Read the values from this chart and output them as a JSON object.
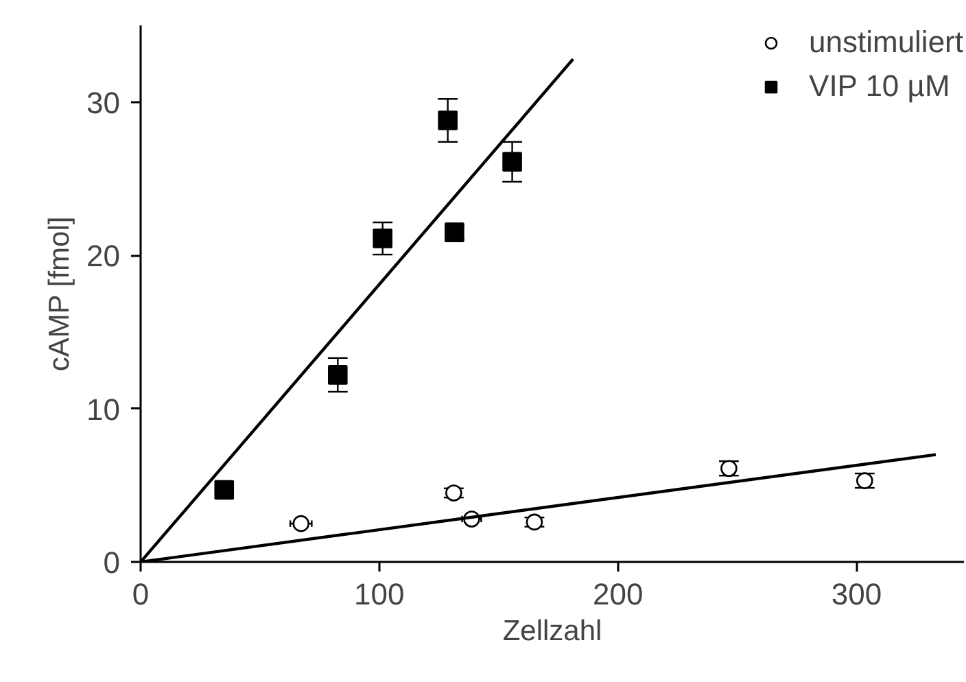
{
  "chart_data": {
    "type": "scatter",
    "xlabel": "Zellzahl",
    "ylabel": "cAMP [fmol]",
    "xlim": [
      0,
      345
    ],
    "ylim": [
      0,
      35
    ],
    "xticks": [
      0,
      100,
      200,
      300
    ],
    "yticks": [
      0,
      10,
      20,
      30
    ],
    "grid": false,
    "legend": "top right",
    "series": [
      {
        "name": "unstimuliert",
        "color": "#000000",
        "marker": "circle",
        "x": [
          67.2,
          131.2,
          138.7,
          165,
          246.5,
          303.4
        ],
        "values": [
          2.5,
          4.5,
          2.8,
          2.6,
          6.1,
          5.3
        ],
        "errors": [
          null,
          0.3,
          null,
          0.3,
          0.47,
          0.47
        ],
        "xerrors": [
          4.5,
          null,
          4,
          null,
          null,
          null
        ]
      },
      {
        "name": "VIP 10 µM",
        "color": "#000000",
        "marker": "square",
        "x": [
          35,
          82.6,
          101.4,
          128.7,
          131.5,
          155.7
        ],
        "values": [
          4.7,
          12.2,
          21.1,
          28.8,
          21.5,
          26.1
        ],
        "errors": [
          null,
          1.1,
          1.05,
          1.4,
          0.45,
          1.3
        ],
        "xerrors": [
          3,
          null,
          null,
          null,
          null,
          null
        ]
      },
      {
        "type": "line",
        "color": "#000000",
        "line_style": "solid",
        "x": [
          0,
          333.2
        ],
        "values": [
          0,
          7
        ]
      },
      {
        "type": "line",
        "color": "#000000",
        "line_style": "solid",
        "x": [
          0,
          181.2
        ],
        "values": [
          0,
          32.8
        ]
      }
    ]
  }
}
